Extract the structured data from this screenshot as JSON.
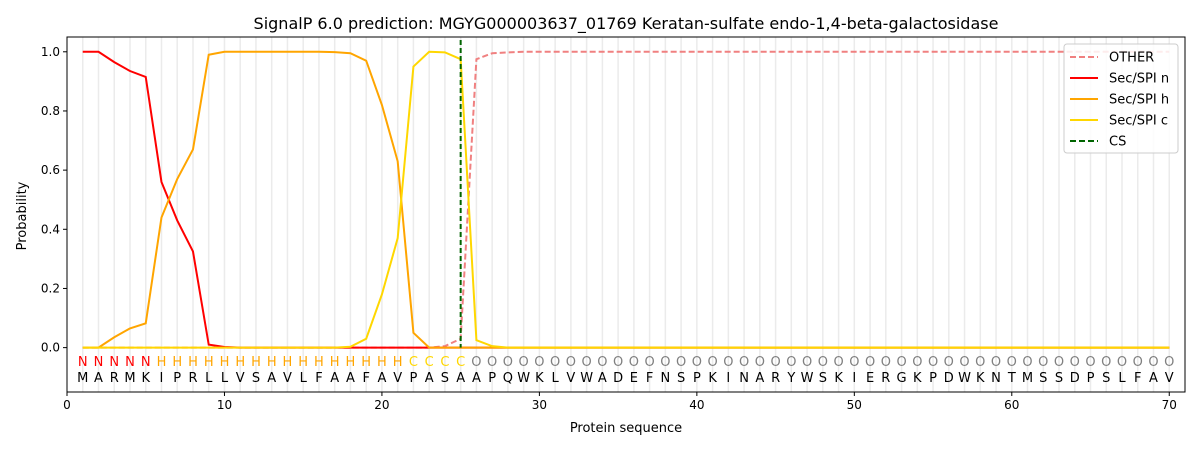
{
  "chart_data": {
    "type": "line",
    "title": "SignalP 6.0 prediction: MGYG000003637_01769 Keratan-sulfate endo-1,4-beta-galactosidase",
    "xlabel": "Protein sequence",
    "ylabel": "Probability",
    "xlim": [
      0,
      71
    ],
    "ylim": [
      -0.15,
      1.05
    ],
    "xticks": [
      0,
      10,
      20,
      30,
      40,
      50,
      60,
      70
    ],
    "yticks": [
      0.0,
      0.2,
      0.4,
      0.6,
      0.8,
      1.0
    ],
    "ytick_labels": [
      "0.0",
      "0.2",
      "0.4",
      "0.6",
      "0.8",
      "1.0"
    ],
    "legend_placement": "top-right",
    "sequence": "MARMKIPRLLVSAVLFAAFAVPASAAPQWKLVWADEFNSPKINARYWSKIERGKPDWKNTMSSDPSLFAV",
    "labels": "NNNNNHHHHHHHHHHHHHHHHCCCCOOOOOOOOOOOOOOOOOOOOOOOOOOOOOOOOOOOOOOOOOOOOO",
    "label_colors": {
      "N": "#ff0000",
      "H": "#ffa500",
      "C": "#ffd700",
      "O": "#808080"
    },
    "cs_position": 25,
    "series": [
      {
        "name": "OTHER",
        "color": "#f08080",
        "dash": true,
        "values": [
          0,
          0,
          0,
          0,
          0,
          0,
          0,
          0,
          0,
          0,
          0,
          0,
          0,
          0,
          0,
          0,
          0,
          0,
          0,
          0,
          0,
          0,
          0,
          0.005,
          0.03,
          0.975,
          0.995,
          0.998,
          1,
          1,
          1,
          1,
          1,
          1,
          1,
          1,
          1,
          1,
          1,
          1,
          1,
          1,
          1,
          1,
          1,
          1,
          1,
          1,
          1,
          1,
          1,
          1,
          1,
          1,
          1,
          1,
          1,
          1,
          1,
          1,
          1,
          1,
          1,
          1,
          1,
          1,
          1,
          1,
          1,
          1
        ]
      },
      {
        "name": "Sec/SPI n",
        "color": "#ff0000",
        "dash": false,
        "values": [
          1.0,
          1.0,
          0.965,
          0.935,
          0.915,
          0.56,
          0.43,
          0.325,
          0.01,
          0.002,
          0,
          0,
          0,
          0,
          0,
          0,
          0,
          0,
          0,
          0,
          0,
          0,
          0,
          0,
          0,
          0,
          0,
          0,
          0,
          0,
          0,
          0,
          0,
          0,
          0,
          0,
          0,
          0,
          0,
          0,
          0,
          0,
          0,
          0,
          0,
          0,
          0,
          0,
          0,
          0,
          0,
          0,
          0,
          0,
          0,
          0,
          0,
          0,
          0,
          0,
          0,
          0,
          0,
          0,
          0,
          0,
          0,
          0,
          0,
          0
        ]
      },
      {
        "name": "Sec/SPI h",
        "color": "#ffa500",
        "dash": false,
        "values": [
          0,
          0,
          0.035,
          0.065,
          0.082,
          0.44,
          0.57,
          0.67,
          0.99,
          1.0,
          1.0,
          1.0,
          1.0,
          1.0,
          1.0,
          1.0,
          0.999,
          0.995,
          0.97,
          0.82,
          0.63,
          0.05,
          0,
          0,
          0,
          0,
          0,
          0,
          0,
          0,
          0,
          0,
          0,
          0,
          0,
          0,
          0,
          0,
          0,
          0,
          0,
          0,
          0,
          0,
          0,
          0,
          0,
          0,
          0,
          0,
          0,
          0,
          0,
          0,
          0,
          0,
          0,
          0,
          0,
          0,
          0,
          0,
          0,
          0,
          0,
          0,
          0,
          0,
          0,
          0
        ]
      },
      {
        "name": "Sec/SPI c",
        "color": "#ffd700",
        "dash": false,
        "values": [
          0,
          0,
          0,
          0,
          0,
          0,
          0,
          0,
          0,
          0,
          0,
          0,
          0,
          0,
          0,
          0,
          0,
          0.003,
          0.03,
          0.18,
          0.37,
          0.95,
          1.0,
          0.998,
          0.975,
          0.025,
          0.005,
          0,
          0,
          0,
          0,
          0,
          0,
          0,
          0,
          0,
          0,
          0,
          0,
          0,
          0,
          0,
          0,
          0,
          0,
          0,
          0,
          0,
          0,
          0,
          0,
          0,
          0,
          0,
          0,
          0,
          0,
          0,
          0,
          0,
          0,
          0,
          0,
          0,
          0,
          0,
          0,
          0,
          0,
          0
        ]
      },
      {
        "name": "CS",
        "color": "#006400",
        "dash": true,
        "values": []
      }
    ]
  }
}
